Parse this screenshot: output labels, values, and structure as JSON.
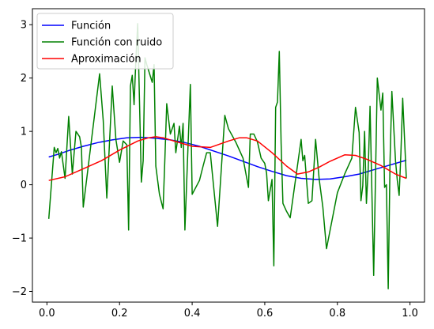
{
  "chart_data": {
    "type": "line",
    "title": "",
    "xlabel": "",
    "ylabel": "",
    "xlim": [
      -0.04,
      1.04
    ],
    "ylim": [
      -2.2,
      3.3
    ],
    "xticks": [
      0.0,
      0.2,
      0.4,
      0.6,
      0.8,
      1.0
    ],
    "yticks": [
      -2,
      -1,
      0,
      1,
      2,
      3
    ],
    "xtick_labels": [
      "0.0",
      "0.2",
      "0.4",
      "0.6",
      "0.8",
      "1.0"
    ],
    "ytick_labels": [
      "−2",
      "−1",
      "0",
      "1",
      "2",
      "3"
    ],
    "grid": false,
    "legend_position": "top-left",
    "series": [
      {
        "name": "Función",
        "color": "#0000ff",
        "x": [
          0.005,
          0.03,
          0.06,
          0.1,
          0.14,
          0.18,
          0.22,
          0.26,
          0.3,
          0.34,
          0.38,
          0.42,
          0.46,
          0.5,
          0.54,
          0.58,
          0.62,
          0.66,
          0.7,
          0.74,
          0.78,
          0.82,
          0.86,
          0.9,
          0.94,
          0.99
        ],
        "y": [
          0.52,
          0.57,
          0.64,
          0.72,
          0.79,
          0.84,
          0.88,
          0.89,
          0.87,
          0.84,
          0.79,
          0.72,
          0.63,
          0.54,
          0.44,
          0.34,
          0.25,
          0.17,
          0.12,
          0.1,
          0.11,
          0.15,
          0.2,
          0.28,
          0.36,
          0.46
        ]
      },
      {
        "name": "Función con ruido",
        "color": "#008000",
        "x": [
          0.005,
          0.02,
          0.025,
          0.03,
          0.035,
          0.04,
          0.05,
          0.06,
          0.07,
          0.08,
          0.09,
          0.095,
          0.1,
          0.145,
          0.155,
          0.165,
          0.18,
          0.19,
          0.2,
          0.21,
          0.22,
          0.225,
          0.23,
          0.235,
          0.24,
          0.245,
          0.25,
          0.26,
          0.265,
          0.27,
          0.275,
          0.29,
          0.295,
          0.3,
          0.31,
          0.32,
          0.325,
          0.33,
          0.34,
          0.35,
          0.355,
          0.36,
          0.365,
          0.37,
          0.375,
          0.38,
          0.39,
          0.395,
          0.4,
          0.42,
          0.43,
          0.44,
          0.45,
          0.47,
          0.49,
          0.5,
          0.52,
          0.54,
          0.555,
          0.56,
          0.57,
          0.58,
          0.59,
          0.6,
          0.605,
          0.61,
          0.62,
          0.625,
          0.63,
          0.635,
          0.64,
          0.645,
          0.65,
          0.66,
          0.67,
          0.7,
          0.705,
          0.71,
          0.72,
          0.73,
          0.74,
          0.75,
          0.76,
          0.77,
          0.8,
          0.82,
          0.84,
          0.85,
          0.86,
          0.865,
          0.87,
          0.875,
          0.88,
          0.885,
          0.89,
          0.9,
          0.91,
          0.92,
          0.925,
          0.93,
          0.935,
          0.94,
          0.945,
          0.95,
          0.96,
          0.965,
          0.97,
          0.975,
          0.98,
          0.99
        ],
        "y": [
          -0.64,
          0.7,
          0.6,
          0.68,
          0.5,
          0.62,
          0.12,
          1.28,
          0.2,
          1.0,
          0.9,
          0.7,
          -0.42,
          2.08,
          1.2,
          -0.25,
          1.85,
          0.85,
          0.42,
          0.82,
          0.75,
          -0.85,
          1.85,
          2.05,
          1.5,
          2.35,
          3.02,
          0.05,
          0.45,
          2.38,
          2.25,
          1.92,
          2.25,
          0.35,
          -0.18,
          -0.45,
          0.5,
          1.52,
          0.95,
          1.15,
          0.6,
          0.85,
          1.1,
          0.7,
          1.15,
          -0.85,
          0.98,
          1.88,
          -0.18,
          0.08,
          0.35,
          0.6,
          0.6,
          -0.78,
          1.3,
          1.05,
          0.8,
          0.5,
          -0.05,
          0.95,
          0.95,
          0.8,
          0.5,
          0.4,
          0.22,
          -0.3,
          0.1,
          -1.52,
          1.45,
          1.55,
          2.5,
          0.78,
          -0.35,
          -0.5,
          -0.62,
          0.85,
          0.45,
          0.55,
          -0.35,
          -0.3,
          0.85,
          0.1,
          -0.42,
          -1.2,
          -0.15,
          0.2,
          0.5,
          1.45,
          0.98,
          -0.3,
          -0.02,
          1.0,
          -0.35,
          0.3,
          1.47,
          -1.7,
          2.0,
          1.4,
          1.72,
          -0.05,
          0.0,
          -1.95,
          0.45,
          1.75,
          0.45,
          0.08,
          -0.2,
          0.58,
          1.62,
          0.12
        ]
      },
      {
        "name": "Aproximación",
        "color": "#ff0000",
        "x": [
          0.005,
          0.05,
          0.1,
          0.15,
          0.2,
          0.25,
          0.28,
          0.3,
          0.32,
          0.35,
          0.4,
          0.45,
          0.5,
          0.53,
          0.55,
          0.58,
          0.62,
          0.66,
          0.69,
          0.72,
          0.75,
          0.78,
          0.82,
          0.85,
          0.88,
          0.92,
          0.96,
          0.99
        ],
        "y": [
          0.08,
          0.15,
          0.3,
          0.45,
          0.65,
          0.82,
          0.88,
          0.9,
          0.88,
          0.82,
          0.72,
          0.7,
          0.82,
          0.88,
          0.88,
          0.82,
          0.6,
          0.35,
          0.2,
          0.24,
          0.33,
          0.44,
          0.56,
          0.55,
          0.48,
          0.36,
          0.2,
          0.12
        ]
      }
    ]
  }
}
